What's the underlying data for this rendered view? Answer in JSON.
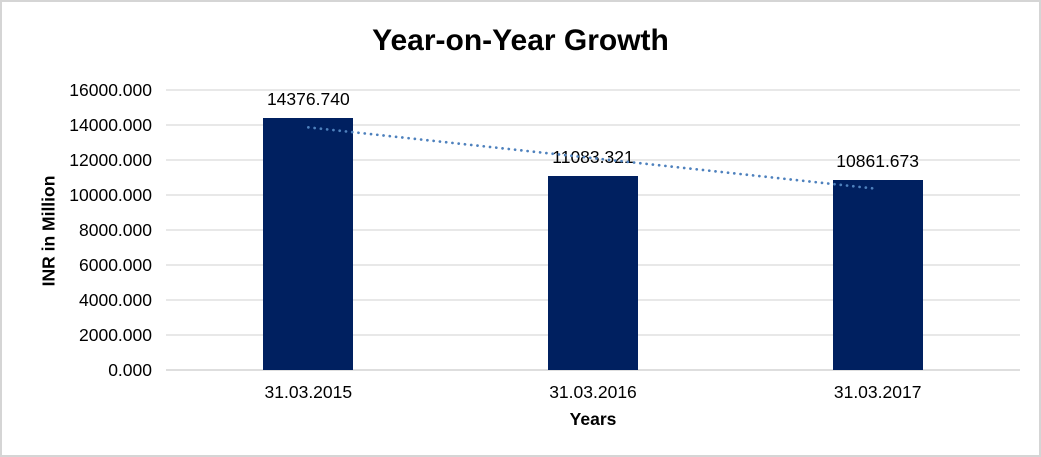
{
  "chart_data": {
    "type": "bar",
    "title": "Year-on-Year Growth",
    "xlabel": "Years",
    "ylabel": "INR in Million",
    "categories": [
      "31.03.2015",
      "31.03.2016",
      "31.03.2017"
    ],
    "values": [
      14376.74,
      11083.321,
      10861.673
    ],
    "data_labels": [
      "14376.740",
      "11083.321",
      "10861.673"
    ],
    "ylim": [
      0,
      16000
    ],
    "ytick_step": 2000,
    "ytick_labels": [
      "0.000",
      "2000.000",
      "4000.000",
      "6000.000",
      "8000.000",
      "10000.000",
      "12000.000",
      "14000.000",
      "16000.000"
    ],
    "grid": true,
    "legend": "none",
    "trendline": {
      "type": "linear",
      "style": "dotted"
    },
    "colors": {
      "bar": "#002060",
      "trendline": "#4e81bd",
      "gridline": "#d9d9d9",
      "axis_line": "#c9c9c9",
      "text": "#000000",
      "frame_border": "#d5d5d5",
      "background": "#ffffff"
    }
  }
}
